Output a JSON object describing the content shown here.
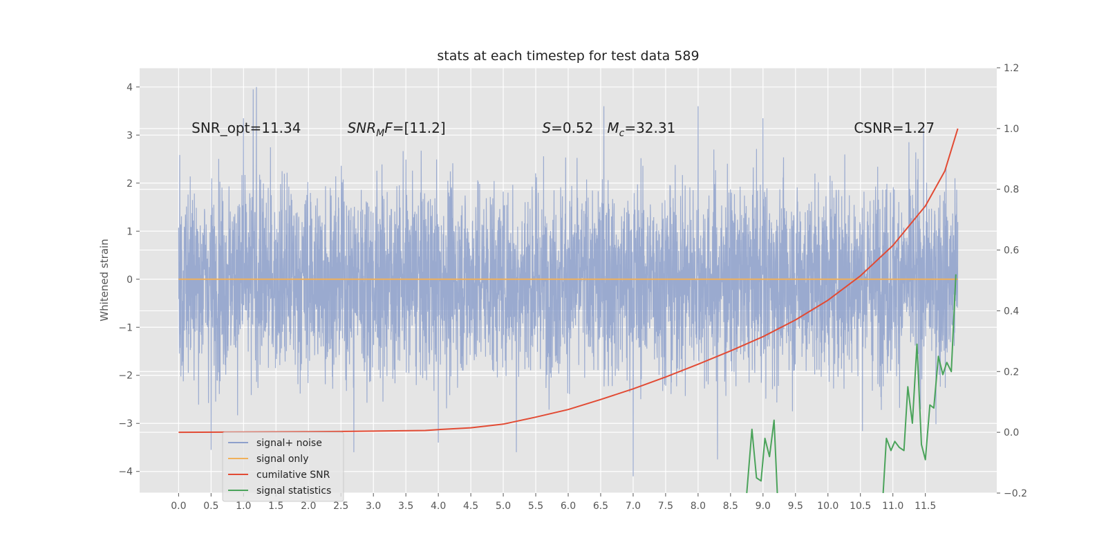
{
  "chart_data": {
    "type": "line",
    "title": "stats at each timestep for test data 589",
    "xlabel": "",
    "ylabel": "Whitened strain",
    "xlim": [
      -0.6,
      12.6
    ],
    "ylim": [
      -4.45,
      4.4
    ],
    "y2lim": [
      -0.2,
      1.2
    ],
    "grid": true,
    "xticks": [
      "0.0",
      "0.5",
      "1.0",
      "1.5",
      "2.0",
      "2.5",
      "3.0",
      "3.5",
      "4.0",
      "4.5",
      "5.0",
      "5.5",
      "6.0",
      "6.5",
      "7.0",
      "7.5",
      "8.0",
      "8.5",
      "9.0",
      "9.5",
      "10.0",
      "10.5",
      "11.0",
      "11.5"
    ],
    "yticks": [
      "−4",
      "−3",
      "−2",
      "−1",
      "0",
      "1",
      "2",
      "3",
      "4"
    ],
    "y2ticks": [
      "−0.2",
      "0.0",
      "0.2",
      "0.4",
      "0.6",
      "0.8",
      "1.0",
      "1.2"
    ],
    "annotations": [
      {
        "parts": [
          {
            "t": "SNR_opt=11.34",
            "it": false
          }
        ],
        "x": 0.2,
        "y": 3.15
      },
      {
        "parts": [
          {
            "t": "SNR",
            "it": true
          },
          {
            "t": "M",
            "it": true,
            "sub": true
          },
          {
            "t": "F",
            "it": true
          },
          {
            "t": "=[11.2]",
            "it": false
          }
        ],
        "x": 2.6,
        "y": 3.15
      },
      {
        "parts": [
          {
            "t": "S",
            "it": true
          },
          {
            "t": "=0.52",
            "it": false
          }
        ],
        "x": 5.6,
        "y": 3.15
      },
      {
        "parts": [
          {
            "t": "M",
            "it": true
          },
          {
            "t": "c",
            "it": true,
            "sub": true
          },
          {
            "t": "=32.31",
            "it": false
          }
        ],
        "x": 6.6,
        "y": 3.15
      },
      {
        "parts": [
          {
            "t": "CSNR=1.27",
            "it": false
          }
        ],
        "x": 10.4,
        "y": 3.15
      }
    ],
    "legend": {
      "position": "lower-left",
      "entries": [
        {
          "label": "signal+ noise",
          "color": "#8da0cb"
        },
        {
          "label": "signal only",
          "color": "#f0b05a"
        },
        {
          "label": "cumilative SNR",
          "color": "#e24a33"
        },
        {
          "label": "signal statistics",
          "color": "#4aa35a"
        }
      ]
    },
    "series": [
      {
        "name": "signal+ noise",
        "axis": "left",
        "color": "#8da0cb",
        "x_range": [
          0.0,
          12.0
        ],
        "samples": 4096,
        "band_typical": [
          -1.9,
          1.9
        ],
        "peaks": [
          [
            1.2,
            4.0
          ],
          [
            1.15,
            3.95
          ],
          [
            6.55,
            3.6
          ],
          [
            8.0,
            3.6
          ],
          [
            1.0,
            3.35
          ],
          [
            9.0,
            3.35
          ]
        ],
        "troughs": [
          [
            7.0,
            -4.1
          ],
          [
            8.3,
            -3.75
          ],
          [
            0.5,
            -3.55
          ],
          [
            2.7,
            -3.6
          ],
          [
            5.2,
            -3.6
          ],
          [
            4.0,
            -3.4
          ]
        ]
      },
      {
        "name": "signal only",
        "axis": "left",
        "color": "#f0b05a",
        "x": [
          0.0,
          12.0
        ],
        "y": [
          0.0,
          0.0
        ]
      },
      {
        "name": "cumilative SNR",
        "axis": "right",
        "color": "#e24a33",
        "x": [
          0.0,
          1.0,
          2.0,
          3.0,
          3.8,
          4.0,
          4.5,
          5.0,
          5.5,
          6.0,
          6.5,
          7.0,
          7.5,
          8.0,
          8.5,
          9.0,
          9.5,
          10.0,
          10.5,
          11.0,
          11.5,
          11.8,
          12.0
        ],
        "y": [
          0.0,
          0.001,
          0.002,
          0.004,
          0.006,
          0.009,
          0.015,
          0.027,
          0.05,
          0.075,
          0.108,
          0.143,
          0.182,
          0.224,
          0.268,
          0.315,
          0.37,
          0.435,
          0.515,
          0.615,
          0.745,
          0.86,
          1.0
        ]
      },
      {
        "name": "signal statistics",
        "axis": "right",
        "color": "#4aa35a",
        "x": [
          8.75,
          8.83,
          8.9,
          8.97,
          9.03,
          9.1,
          9.17,
          9.22
        ],
        "y": [
          -0.2,
          0.01,
          -0.15,
          -0.16,
          -0.02,
          -0.08,
          0.04,
          -0.2
        ],
        "x2": [
          10.85,
          10.9,
          10.97,
          11.03,
          11.1,
          11.17,
          11.23,
          11.3,
          11.37,
          11.44,
          11.5,
          11.57,
          11.63,
          11.7,
          11.77,
          11.83,
          11.9,
          11.97
        ],
        "y2": [
          -0.2,
          -0.02,
          -0.06,
          -0.03,
          -0.05,
          -0.06,
          0.15,
          0.03,
          0.29,
          -0.04,
          -0.09,
          0.09,
          0.08,
          0.25,
          0.19,
          0.23,
          0.2,
          0.52
        ]
      }
    ]
  }
}
